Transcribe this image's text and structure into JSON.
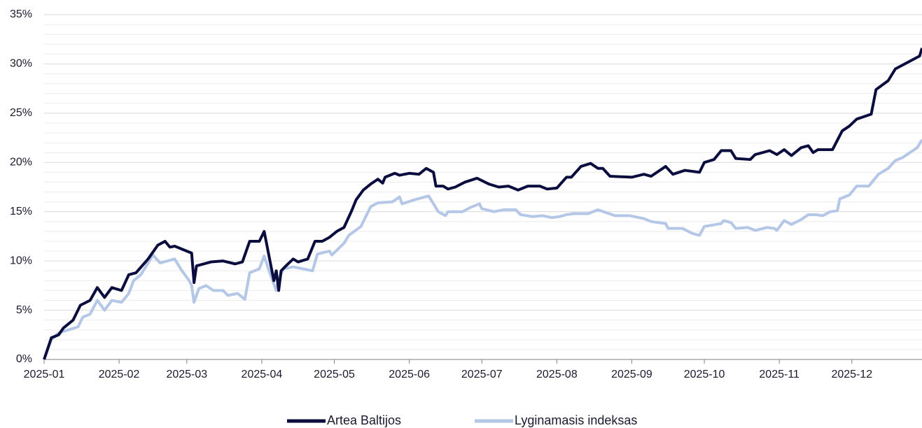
{
  "chart_data": {
    "type": "line",
    "xlim": [
      0,
      363
    ],
    "xticks": [
      {
        "value": 0,
        "label": "2025-01"
      },
      {
        "value": 31,
        "label": "2025-02"
      },
      {
        "value": 59,
        "label": "2025-03"
      },
      {
        "value": 90,
        "label": "2025-04"
      },
      {
        "value": 120,
        "label": "2025-05"
      },
      {
        "value": 151,
        "label": "2025-06"
      },
      {
        "value": 181,
        "label": "2025-07"
      },
      {
        "value": 212,
        "label": "2025-08"
      },
      {
        "value": 243,
        "label": "2025-09"
      },
      {
        "value": 273,
        "label": "2025-10"
      },
      {
        "value": 304,
        "label": "2025-11"
      },
      {
        "value": 334,
        "label": "2025-12"
      }
    ],
    "ylim": [
      0,
      35
    ],
    "yticks": [
      {
        "value": 0,
        "label": "0%"
      },
      {
        "value": 5,
        "label": "5%"
      },
      {
        "value": 10,
        "label": "10%"
      },
      {
        "value": 15,
        "label": "15%"
      },
      {
        "value": 20,
        "label": "20%"
      },
      {
        "value": 25,
        "label": "25%"
      },
      {
        "value": 30,
        "label": "30%"
      },
      {
        "value": 35,
        "label": "35%"
      }
    ],
    "yminorticks": [
      1,
      2,
      3,
      4,
      6,
      7,
      8,
      9,
      11,
      12,
      13,
      14,
      16,
      17,
      18,
      19,
      21,
      22,
      23,
      24,
      26,
      27,
      28,
      29,
      31,
      32,
      33,
      34
    ],
    "grid": true,
    "legend": "bottom",
    "series": [
      {
        "name": "Artea Baltijos",
        "color": "#0b0d3e",
        "x": [
          0,
          3,
          6,
          8,
          12,
          15,
          19,
          22,
          25,
          28,
          32,
          35,
          38,
          43,
          47,
          50,
          52,
          54,
          61,
          62,
          63,
          69,
          74,
          79,
          82,
          85,
          89,
          91,
          95,
          96,
          97,
          98,
          100,
          103,
          105,
          109,
          112,
          115,
          118,
          121,
          124,
          127,
          129,
          132,
          135,
          138,
          140,
          141,
          145,
          147,
          151,
          155,
          158,
          161,
          162,
          165,
          167,
          170,
          174,
          179,
          184,
          188,
          192,
          196,
          200,
          205,
          208,
          212,
          216,
          218,
          222,
          226,
          229,
          231,
          234,
          243,
          248,
          251,
          257,
          260,
          265,
          271,
          273,
          277,
          280,
          284,
          286,
          292,
          294,
          300,
          303,
          306,
          309,
          313,
          316,
          318,
          320,
          326,
          330,
          333,
          336,
          342,
          344,
          349,
          352,
          362,
          363
        ],
        "values": [
          0,
          2.2,
          2.5,
          3.2,
          4.0,
          5.5,
          6.0,
          7.3,
          6.3,
          7.3,
          7.0,
          8.6,
          8.8,
          10.2,
          11.6,
          12.0,
          11.4,
          11.5,
          10.8,
          7.8,
          9.5,
          9.9,
          10.0,
          9.7,
          9.9,
          12.0,
          12.0,
          13.0,
          8.0,
          9.0,
          7.0,
          9.0,
          9.5,
          10.2,
          9.9,
          10.2,
          12.0,
          12.0,
          12.4,
          13.0,
          13.4,
          15.0,
          16.2,
          17.2,
          17.8,
          18.3,
          17.9,
          18.5,
          18.9,
          18.7,
          18.9,
          18.8,
          19.4,
          19.0,
          17.6,
          17.6,
          17.3,
          17.5,
          18.0,
          18.4,
          17.8,
          17.5,
          17.6,
          17.2,
          17.6,
          17.6,
          17.3,
          17.4,
          18.5,
          18.5,
          19.6,
          19.9,
          19.4,
          19.4,
          18.6,
          18.5,
          18.8,
          18.6,
          19.6,
          18.8,
          19.2,
          19.0,
          20.0,
          20.3,
          21.2,
          21.2,
          20.4,
          20.3,
          20.8,
          21.2,
          20.8,
          21.3,
          20.7,
          21.5,
          21.7,
          21.0,
          21.3,
          21.3,
          23.2,
          23.7,
          24.4,
          24.9,
          27.4,
          28.3,
          29.5,
          30.8,
          31.6
        ]
      },
      {
        "name": "Lyginamasis indeksas",
        "color": "#b4c7e7",
        "x": [
          0,
          3,
          6,
          14,
          16,
          19,
          22,
          25,
          28,
          32,
          35,
          37,
          40,
          43,
          45,
          48,
          54,
          57,
          60,
          61,
          62,
          64,
          67,
          70,
          74,
          76,
          80,
          83,
          85,
          89,
          91,
          93,
          96,
          97,
          99,
          103,
          111,
          113,
          118,
          119,
          124,
          126,
          131,
          135,
          138,
          144,
          147,
          148,
          153,
          159,
          163,
          166,
          167,
          173,
          176,
          180,
          181,
          186,
          190,
          195,
          197,
          202,
          206,
          210,
          213,
          216,
          219,
          225,
          229,
          236,
          242,
          248,
          251,
          257,
          258,
          264,
          268,
          271,
          273,
          280,
          281,
          284,
          286,
          291,
          294,
          299,
          302,
          303,
          306,
          309,
          313,
          316,
          319,
          322,
          325,
          328,
          329,
          333,
          336,
          341,
          345,
          349,
          352,
          355,
          361,
          363
        ],
        "values": [
          0,
          2.0,
          2.7,
          3.3,
          4.3,
          4.6,
          6.0,
          5.0,
          6.0,
          5.8,
          6.7,
          8.0,
          8.6,
          9.8,
          10.6,
          9.8,
          10.2,
          9.0,
          8.0,
          7.5,
          5.8,
          7.2,
          7.5,
          7.0,
          7.0,
          6.5,
          6.7,
          6.1,
          8.8,
          9.2,
          10.5,
          9.0,
          7.0,
          8.2,
          9.2,
          9.4,
          9.0,
          10.7,
          11.0,
          10.6,
          11.8,
          12.6,
          13.5,
          15.5,
          15.9,
          16.0,
          16.5,
          15.8,
          16.2,
          16.6,
          15.0,
          14.6,
          15.0,
          15.0,
          15.4,
          15.8,
          15.3,
          15.0,
          15.2,
          15.2,
          14.7,
          14.5,
          14.6,
          14.4,
          14.5,
          14.7,
          14.8,
          14.8,
          15.2,
          14.6,
          14.6,
          14.3,
          14.0,
          13.8,
          13.3,
          13.3,
          12.8,
          12.6,
          13.5,
          13.8,
          14.1,
          13.9,
          13.3,
          13.4,
          13.1,
          13.4,
          13.3,
          13.1,
          14.1,
          13.7,
          14.2,
          14.7,
          14.7,
          14.6,
          15.0,
          15.1,
          16.3,
          16.7,
          17.6,
          17.6,
          18.8,
          19.4,
          20.2,
          20.5,
          21.5,
          22.3
        ]
      }
    ]
  }
}
